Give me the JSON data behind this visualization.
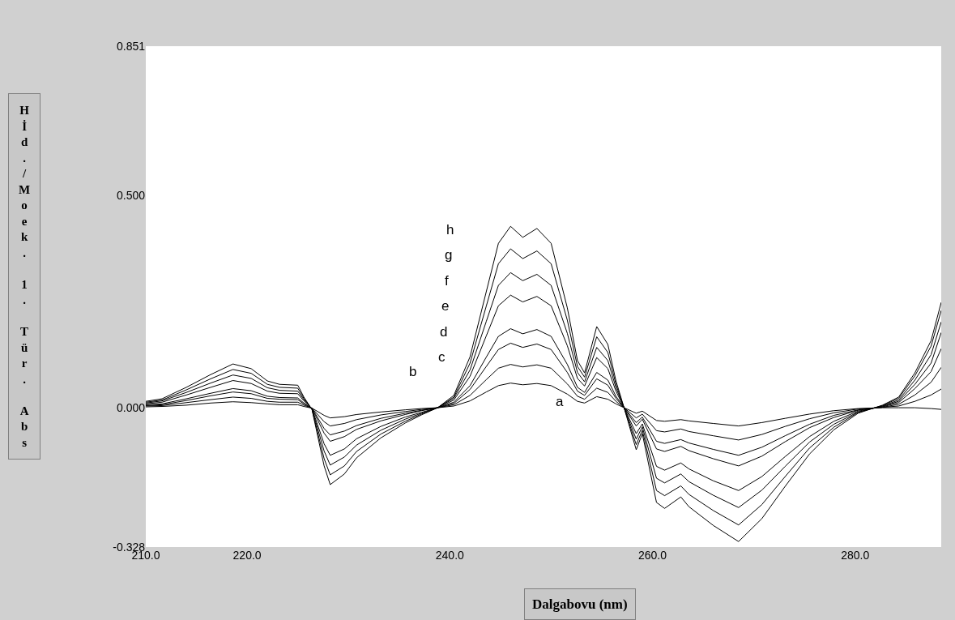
{
  "chart_data": {
    "type": "line",
    "xlabel": "Dalgabovu (nm)",
    "ylabel": "Hİd./Moek. 1. Tür. Abs",
    "x": [
      210.0,
      211.6,
      214.0,
      216.4,
      218.6,
      220.4,
      222.0,
      223.2,
      225.0,
      225.6,
      226.4,
      227.6,
      228.2,
      229.6,
      230.8,
      233.2,
      235.6,
      237.2,
      238.8,
      240.4,
      242.0,
      243.6,
      244.8,
      246.0,
      247.2,
      248.6,
      250.0,
      251.6,
      252.6,
      253.3,
      254.5,
      255.6,
      256.4,
      257.2,
      258.4,
      259.0,
      260.4,
      261.2,
      262.8,
      263.6,
      266.0,
      268.5,
      270.8,
      273.1,
      275.5,
      277.9,
      280.3,
      282.7,
      284.3,
      285.9,
      287.5,
      288.5
    ],
    "series": [
      {
        "color": "#000000",
        "values": [
          0.002,
          0.003,
          0.006,
          0.011,
          0.014,
          0.012,
          0.009,
          0.007,
          0.007,
          0.003,
          -0.001,
          -0.018,
          -0.024,
          -0.021,
          -0.016,
          -0.01,
          -0.005,
          -0.002,
          0,
          0.004,
          0.016,
          0.037,
          0.052,
          0.058,
          0.054,
          0.057,
          0.052,
          0.032,
          0.015,
          0.011,
          0.026,
          0.02,
          0.009,
          0,
          -0.013,
          -0.008,
          -0.03,
          -0.032,
          -0.028,
          -0.031,
          -0.037,
          -0.043,
          -0.035,
          -0.025,
          -0.015,
          -0.007,
          -0.002,
          0,
          0,
          0,
          -0.002,
          -0.004
        ]
      },
      {
        "color": "#000000",
        "values": [
          0.004,
          0.005,
          0.012,
          0.019,
          0.025,
          0.022,
          0.015,
          0.013,
          0.013,
          0.006,
          -0.001,
          -0.033,
          -0.043,
          -0.037,
          -0.028,
          -0.017,
          -0.009,
          -0.004,
          0,
          0.007,
          0.029,
          0.066,
          0.093,
          0.102,
          0.096,
          0.101,
          0.093,
          0.056,
          0.027,
          0.02,
          0.046,
          0.036,
          0.015,
          0,
          -0.024,
          -0.015,
          -0.054,
          -0.057,
          -0.05,
          -0.056,
          -0.066,
          -0.076,
          -0.063,
          -0.044,
          -0.026,
          -0.012,
          -0.003,
          0.001,
          0.004,
          0.015,
          0.03,
          0.044
        ]
      },
      {
        "color": "#000000",
        "values": [
          0.005,
          0.007,
          0.017,
          0.028,
          0.037,
          0.033,
          0.022,
          0.02,
          0.019,
          0.009,
          -0.001,
          -0.049,
          -0.064,
          -0.055,
          -0.042,
          -0.025,
          -0.013,
          -0.006,
          0,
          0.01,
          0.043,
          0.097,
          0.137,
          0.152,
          0.142,
          0.15,
          0.137,
          0.083,
          0.039,
          0.029,
          0.068,
          0.053,
          0.022,
          0,
          -0.035,
          -0.022,
          -0.079,
          -0.084,
          -0.075,
          -0.083,
          -0.098,
          -0.112,
          -0.093,
          -0.066,
          -0.039,
          -0.018,
          -0.005,
          0.001,
          0.008,
          0.03,
          0.06,
          0.095
        ]
      },
      {
        "color": "#000000",
        "values": [
          0.007,
          0.009,
          0.021,
          0.034,
          0.045,
          0.04,
          0.027,
          0.024,
          0.023,
          0.011,
          -0.002,
          -0.06,
          -0.079,
          -0.068,
          -0.051,
          -0.031,
          -0.016,
          -0.007,
          0,
          0.013,
          0.052,
          0.119,
          0.168,
          0.186,
          0.174,
          0.184,
          0.168,
          0.102,
          0.048,
          0.036,
          0.083,
          0.065,
          0.027,
          0,
          -0.043,
          -0.027,
          -0.097,
          -0.103,
          -0.091,
          -0.101,
          -0.12,
          -0.137,
          -0.114,
          -0.08,
          -0.047,
          -0.023,
          -0.006,
          0.002,
          0.012,
          0.045,
          0.085,
          0.139
        ]
      },
      {
        "color": "#000000",
        "values": [
          0.009,
          0.013,
          0.03,
          0.048,
          0.064,
          0.057,
          0.039,
          0.034,
          0.033,
          0.016,
          -0.002,
          -0.085,
          -0.112,
          -0.097,
          -0.073,
          -0.044,
          -0.022,
          -0.011,
          0,
          0.018,
          0.074,
          0.169,
          0.24,
          0.265,
          0.249,
          0.262,
          0.24,
          0.146,
          0.069,
          0.051,
          0.118,
          0.092,
          0.039,
          0,
          -0.061,
          -0.038,
          -0.138,
          -0.147,
          -0.13,
          -0.144,
          -0.172,
          -0.195,
          -0.162,
          -0.115,
          -0.068,
          -0.032,
          -0.008,
          0.003,
          0.015,
          0.055,
          0.105,
          0.177
        ]
      },
      {
        "color": "#000000",
        "values": [
          0.011,
          0.016,
          0.036,
          0.058,
          0.077,
          0.069,
          0.047,
          0.041,
          0.039,
          0.019,
          -0.003,
          -0.102,
          -0.135,
          -0.116,
          -0.088,
          -0.053,
          -0.027,
          -0.013,
          0,
          0.022,
          0.089,
          0.203,
          0.288,
          0.318,
          0.299,
          0.314,
          0.288,
          0.175,
          0.083,
          0.061,
          0.142,
          0.111,
          0.047,
          0,
          -0.074,
          -0.045,
          -0.166,
          -0.177,
          -0.156,
          -0.174,
          -0.206,
          -0.235,
          -0.194,
          -0.138,
          -0.081,
          -0.039,
          -0.01,
          0.004,
          0.018,
          0.065,
          0.125,
          0.202
        ]
      },
      {
        "color": "#000000",
        "values": [
          0.013,
          0.018,
          0.042,
          0.068,
          0.09,
          0.081,
          0.055,
          0.048,
          0.046,
          0.022,
          -0.004,
          -0.12,
          -0.158,
          -0.137,
          -0.103,
          -0.062,
          -0.032,
          -0.015,
          0,
          0.025,
          0.105,
          0.239,
          0.339,
          0.374,
          0.351,
          0.369,
          0.339,
          0.206,
          0.097,
          0.072,
          0.167,
          0.13,
          0.055,
          0,
          -0.087,
          -0.053,
          -0.195,
          -0.207,
          -0.184,
          -0.204,
          -0.242,
          -0.276,
          -0.228,
          -0.162,
          -0.095,
          -0.046,
          -0.011,
          0.005,
          0.022,
          0.075,
          0.145,
          0.229
        ]
      },
      {
        "color": "#000000",
        "values": [
          0.015,
          0.021,
          0.048,
          0.078,
          0.103,
          0.092,
          0.063,
          0.055,
          0.053,
          0.025,
          -0.004,
          -0.137,
          -0.181,
          -0.156,
          -0.118,
          -0.071,
          -0.036,
          -0.017,
          0,
          0.029,
          0.12,
          0.273,
          0.387,
          0.427,
          0.401,
          0.422,
          0.387,
          0.235,
          0.111,
          0.082,
          0.191,
          0.149,
          0.063,
          0,
          -0.099,
          -0.061,
          -0.223,
          -0.237,
          -0.21,
          -0.233,
          -0.277,
          -0.315,
          -0.261,
          -0.185,
          -0.109,
          -0.052,
          -0.013,
          0.006,
          0.025,
          0.082,
          0.158,
          0.248
        ]
      }
    ],
    "annotations": [
      "a",
      "b",
      "c",
      "d",
      "e",
      "f",
      "g",
      "h"
    ],
    "xlim": [
      210,
      288.5
    ],
    "xticks": [
      {
        "value": 210,
        "label": "210.0"
      },
      {
        "value": 220,
        "label": "220.0"
      },
      {
        "value": 240,
        "label": "240.0"
      },
      {
        "value": 260,
        "label": "260.0"
      },
      {
        "value": 280,
        "label": "280.0"
      }
    ],
    "ylim": [
      -0.328,
      0.851
    ],
    "yticks": [
      {
        "value": -0.328,
        "label": "-0.328"
      },
      {
        "value": 0,
        "label": "0.000"
      },
      {
        "value": 0.5,
        "label": "0.500"
      },
      {
        "value": 0.851,
        "label": "0.851"
      }
    ],
    "line_style": "solid",
    "marker": "none"
  }
}
